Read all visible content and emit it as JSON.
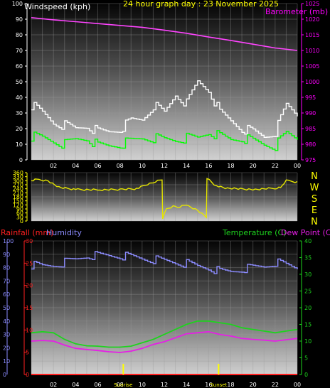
{
  "chart_data": [
    {
      "type": "line",
      "title": "24 hour graph day : 23 November 2025",
      "left_label": "Windspeed (kph)",
      "right_label": "Barometer (mb)",
      "colors": {
        "title": "#ffff00",
        "left": "#ffffff",
        "right": "#ff00ff",
        "gust": "#ffffff",
        "wind": "#00ff00",
        "baro": "#ff44ff"
      },
      "x_ticks": [
        "02",
        "04",
        "06",
        "08",
        "10",
        "12",
        "14",
        "16",
        "18",
        "20",
        "22",
        "00"
      ],
      "ylim_left": [
        0,
        100
      ],
      "yticks_left": [
        0,
        10,
        20,
        30,
        40,
        50,
        60,
        70,
        80,
        90,
        100
      ],
      "ylim_right": [
        975,
        1025
      ],
      "yticks_right": [
        975,
        980,
        985,
        990,
        995,
        1000,
        1005,
        1010,
        1015,
        1020,
        1025
      ],
      "series": [
        {
          "name": "Gust",
          "axis": "left",
          "hours": [
            0,
            1,
            2,
            3,
            4,
            5,
            6,
            7,
            8,
            9,
            10,
            11,
            12,
            13,
            14,
            15,
            16,
            17,
            18,
            19,
            20,
            21,
            22,
            23,
            24
          ],
          "values": [
            35,
            30,
            24,
            22,
            20,
            22,
            18,
            18,
            20,
            25,
            26,
            35,
            30,
            42,
            36,
            50,
            45,
            30,
            25,
            20,
            18,
            15,
            18,
            35,
            29
          ]
        },
        {
          "name": "Wind speed",
          "axis": "left",
          "hours": [
            0,
            1,
            2,
            3,
            4,
            5,
            6,
            7,
            8,
            9,
            10,
            11,
            12,
            13,
            14,
            15,
            16,
            17,
            18,
            19,
            20,
            21,
            22,
            23,
            24
          ],
          "values": [
            15,
            14,
            12,
            10,
            13,
            14,
            9,
            9,
            10,
            12,
            14,
            14,
            13,
            13,
            14,
            14,
            18,
            15,
            13,
            14,
            12,
            10,
            9,
            17,
            14
          ]
        },
        {
          "name": "Barometer",
          "axis": "right",
          "hours": [
            0,
            2,
            4,
            6,
            8,
            10,
            12,
            14,
            16,
            18,
            20,
            22,
            24
          ],
          "values": [
            1020.5,
            1019.8,
            1019.2,
            1018.6,
            1018.0,
            1017.4,
            1016.5,
            1015.5,
            1014.3,
            1013.2,
            1012.0,
            1010.8,
            1010.0
          ]
        }
      ]
    },
    {
      "type": "line",
      "right_labels": [
        "N",
        "W",
        "S",
        "E",
        "N"
      ],
      "ylim": [
        0,
        360
      ],
      "yticks": [
        0,
        90,
        180,
        270,
        360
      ],
      "minor_yticks": [
        30,
        60,
        120,
        150,
        210,
        240,
        300,
        330
      ],
      "colors": {
        "line": "#e6e600",
        "ticks": "#ffff00",
        "labels": "#ffff00"
      },
      "series": [
        {
          "name": "Wind direction",
          "hours": [
            0,
            0.5,
            1.5,
            2.5,
            4,
            6,
            8,
            9.5,
            10.5,
            11,
            11.8,
            11.85,
            12.2,
            12.8,
            13.2,
            14,
            15,
            15.8,
            15.85,
            16.5,
            17.5,
            18.5,
            20,
            22,
            22.5,
            23,
            24
          ],
          "values": [
            300,
            310,
            300,
            250,
            235,
            232,
            235,
            240,
            275,
            290,
            310,
            20,
            90,
            110,
            100,
            120,
            80,
            30,
            320,
            270,
            245,
            240,
            235,
            245,
            250,
            300,
            290
          ]
        }
      ]
    },
    {
      "type": "line",
      "left_labels": [
        "Rainfall (mm)",
        "Humidity"
      ],
      "right_labels": [
        "Temperature (C)",
        "Dew Point (C)"
      ],
      "colors": {
        "rain": "#ff2020",
        "humidity": "#8c8cff",
        "temperature": "#1ed31e",
        "dewpoint": "#e61ee6",
        "sunrise": "#ffff00"
      },
      "x_ticks": [
        "02",
        "04",
        "06",
        "08",
        "10",
        "12",
        "14",
        "16",
        "18",
        "20",
        "22",
        "00"
      ],
      "sun_labels": [
        "Sunrise",
        "Sunset"
      ],
      "sun_hours": [
        8.3,
        16.9
      ],
      "humidity_ylim": [
        0,
        100
      ],
      "humidity_yticks": [
        0,
        10,
        20,
        30,
        40,
        50,
        60,
        70,
        80,
        90,
        100
      ],
      "rain_ylim": [
        0,
        30
      ],
      "rain_yticks": [
        0,
        5,
        10,
        15,
        20,
        25,
        30
      ],
      "temp_ylim": [
        0,
        40
      ],
      "temp_yticks": [
        0,
        5,
        10,
        15,
        20,
        25,
        30,
        35,
        40
      ],
      "series": [
        {
          "name": "Humidity",
          "axis": "humidity",
          "hours": [
            0,
            1,
            2,
            3,
            4,
            5,
            6,
            7,
            8,
            9,
            10,
            11,
            12,
            13,
            14,
            15,
            16,
            17,
            18,
            19,
            20,
            21,
            22,
            23,
            24
          ],
          "values": [
            82,
            81,
            82,
            84,
            86,
            89,
            89,
            89,
            89,
            88,
            87,
            86,
            85,
            84,
            83,
            81,
            80,
            77,
            77,
            79,
            80,
            81,
            84,
            82,
            80
          ]
        },
        {
          "name": "Temperature",
          "axis": "temp",
          "hours": [
            0,
            1,
            2,
            3,
            4,
            5,
            6,
            7,
            8,
            9,
            10,
            11,
            12,
            13,
            14,
            15,
            16,
            17,
            18,
            19,
            20,
            21,
            22,
            23,
            24
          ],
          "values": [
            12.5,
            12.8,
            12.5,
            10.5,
            9.2,
            8.6,
            8.5,
            8.2,
            8.2,
            8.5,
            9.5,
            10.5,
            12,
            13.5,
            15,
            16,
            16,
            15.5,
            15,
            14,
            13.5,
            13,
            12.5,
            13,
            13.5
          ]
        },
        {
          "name": "Dew Point",
          "axis": "temp",
          "hours": [
            0,
            1,
            2,
            3,
            4,
            5,
            6,
            7,
            8,
            9,
            10,
            11,
            12,
            13,
            14,
            15,
            16,
            17,
            18,
            19,
            20,
            21,
            22,
            23,
            24
          ],
          "values": [
            10,
            10.2,
            10,
            8.8,
            7.8,
            7.5,
            7.2,
            6.8,
            6.6,
            7,
            7.8,
            9,
            9.8,
            11,
            12.2,
            12.5,
            12.8,
            12,
            11.5,
            10.8,
            10.5,
            10.3,
            10,
            10.4,
            10.8
          ]
        },
        {
          "name": "Rainfall",
          "axis": "rain",
          "hours": [
            0,
            24
          ],
          "values": [
            0,
            0
          ]
        }
      ]
    }
  ]
}
